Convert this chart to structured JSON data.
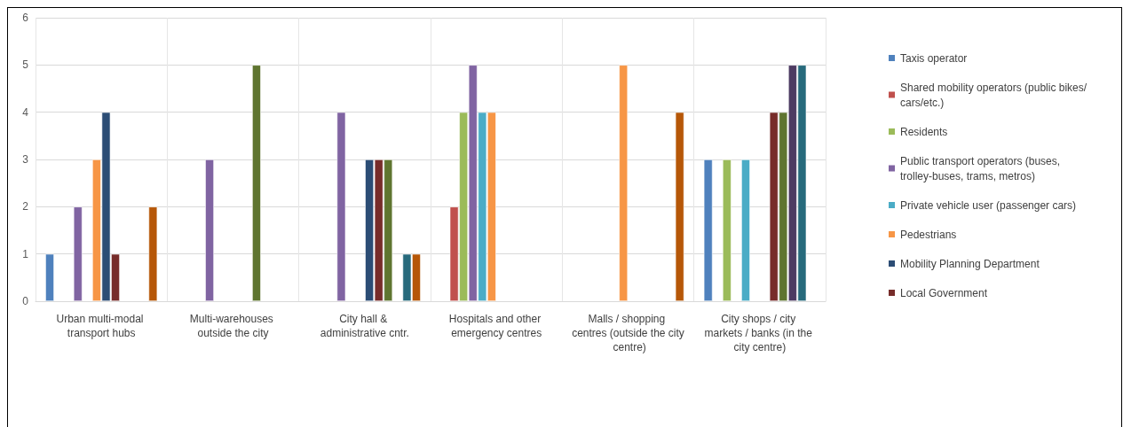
{
  "chart_data": {
    "type": "bar",
    "categories": [
      "Urban multi-modal transport hubs",
      "Multi-warehouses outside the city",
      "City hall & administrative cntr.",
      "Hospitals and other emergency centres",
      "Malls / shopping centres (outside the city centre)",
      "City shops / city markets / banks (in the city centre)"
    ],
    "series": [
      {
        "name": "Taxis operator",
        "color": "#4f81bd",
        "values": [
          1,
          null,
          null,
          null,
          null,
          3
        ]
      },
      {
        "name": "Shared mobility operators (public bikes/cars/etc.)",
        "color": "#c0504d",
        "values": [
          null,
          null,
          null,
          2,
          null,
          null
        ]
      },
      {
        "name": "Residents",
        "color": "#9bbb59",
        "values": [
          null,
          null,
          null,
          4,
          null,
          3
        ]
      },
      {
        "name": "Public transport operators (buses, trolley-buses, trams, metros)",
        "color": "#8064a2",
        "values": [
          2,
          3,
          4,
          5,
          null,
          null
        ]
      },
      {
        "name": "Private vehicle user (passenger cars)",
        "color": "#4bacc6",
        "values": [
          null,
          null,
          null,
          4,
          null,
          3
        ]
      },
      {
        "name": "Pedestrians",
        "color": "#f79646",
        "values": [
          3,
          null,
          null,
          4,
          5,
          null
        ]
      },
      {
        "name": "Mobility Planning Department",
        "color": "#2c4d75",
        "values": [
          4,
          null,
          3,
          null,
          null,
          null
        ]
      },
      {
        "name": "Local Government",
        "color": "#772c2a",
        "values": [
          1,
          null,
          3,
          null,
          null,
          4
        ]
      },
      {
        "color": "#5f7530",
        "values": [
          null,
          5,
          3,
          null,
          null,
          4
        ]
      },
      {
        "color": "#4d3b62",
        "values": [
          null,
          null,
          null,
          null,
          null,
          5
        ]
      },
      {
        "color": "#276a7c",
        "values": [
          null,
          null,
          1,
          null,
          null,
          5
        ]
      },
      {
        "color": "#b65708",
        "values": [
          2,
          null,
          1,
          null,
          4,
          null
        ]
      }
    ],
    "ylim": [
      0,
      6
    ],
    "yticks": [
      0,
      1,
      2,
      3,
      4,
      5,
      6
    ],
    "grid": true,
    "legend": "right"
  }
}
